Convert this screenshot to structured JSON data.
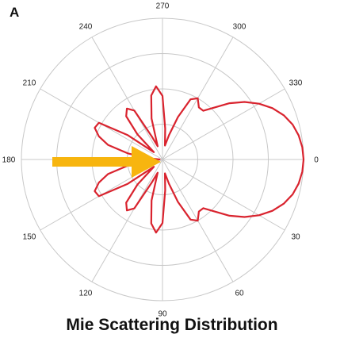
{
  "panel_label": "A",
  "caption": "Mie Scattering Distribution",
  "colors": {
    "curve": "#d9232e",
    "grid": "#c8c8c8",
    "arrow": "#f7b50f"
  },
  "chart_data": {
    "type": "polar",
    "title": "Mie Scattering Distribution",
    "angle_unit": "degrees",
    "angle_direction": "clockwise",
    "zero_direction": "right",
    "angular_ticks": [
      "0",
      "30",
      "60",
      "90",
      "120",
      "150",
      "180",
      "210",
      "240",
      "270",
      "300",
      "330"
    ],
    "radial_rings": 4,
    "rlim": [
      0,
      1
    ],
    "grid": true,
    "series": [
      {
        "angles": [
          0,
          5,
          10,
          15,
          20,
          25,
          30,
          35,
          40,
          45,
          50,
          55,
          60,
          65,
          70,
          75,
          80,
          85,
          90,
          95,
          100,
          105,
          110,
          115,
          120,
          125,
          130,
          135,
          140,
          145,
          150,
          155,
          160,
          165,
          170,
          175,
          180,
          185,
          190,
          195,
          200,
          205,
          210,
          215,
          220,
          225,
          230,
          235,
          240,
          245,
          250,
          255,
          260,
          265,
          270,
          275,
          280,
          285,
          290,
          295,
          300,
          305,
          310,
          315,
          320,
          325,
          330,
          335,
          340,
          345,
          350,
          355
        ],
        "r": [
          1.0,
          0.995,
          0.98,
          0.955,
          0.915,
          0.86,
          0.79,
          0.71,
          0.62,
          0.52,
          0.45,
          0.45,
          0.5,
          0.47,
          0.32,
          0.18,
          0.1,
          0.22,
          0.45,
          0.52,
          0.46,
          0.3,
          0.1,
          0.18,
          0.4,
          0.44,
          0.4,
          0.25,
          0.08,
          0.3,
          0.52,
          0.53,
          0.48,
          0.4,
          0.25,
          0.1,
          0.02,
          0.1,
          0.25,
          0.4,
          0.48,
          0.53,
          0.52,
          0.3,
          0.08,
          0.25,
          0.4,
          0.44,
          0.4,
          0.18,
          0.1,
          0.3,
          0.46,
          0.52,
          0.45,
          0.22,
          0.1,
          0.18,
          0.32,
          0.47,
          0.5,
          0.45,
          0.45,
          0.52,
          0.62,
          0.71,
          0.79,
          0.86,
          0.915,
          0.955,
          0.98,
          0.995
        ]
      }
    ],
    "annotations": [
      {
        "type": "arrow",
        "direction": "toward center",
        "angle": 180
      }
    ]
  }
}
